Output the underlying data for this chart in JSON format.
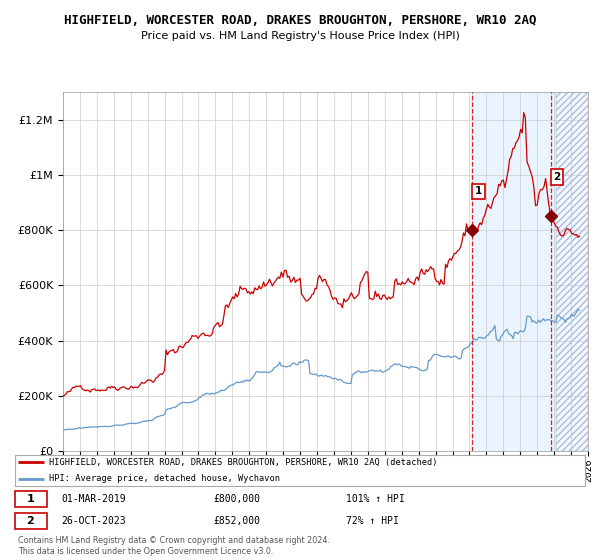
{
  "title": "HIGHFIELD, WORCESTER ROAD, DRAKES BROUGHTON, PERSHORE, WR10 2AQ",
  "subtitle": "Price paid vs. HM Land Registry's House Price Index (HPI)",
  "red_label": "HIGHFIELD, WORCESTER ROAD, DRAKES BROUGHTON, PERSHORE, WR10 2AQ (detached)",
  "blue_label": "HPI: Average price, detached house, Wychavon",
  "footer": "Contains HM Land Registry data © Crown copyright and database right 2024.\nThis data is licensed under the Open Government Licence v3.0.",
  "point1_date": "01-MAR-2019",
  "point1_price": "£800,000",
  "point1_hpi": "101% ↑ HPI",
  "point1_year": 2019.17,
  "point1_value": 800000,
  "point2_date": "26-OCT-2023",
  "point2_price": "£852,000",
  "point2_hpi": "72% ↑ HPI",
  "point2_year": 2023.82,
  "point2_value": 852000,
  "ylim": [
    0,
    1300000
  ],
  "yticks": [
    0,
    200000,
    400000,
    600000,
    800000,
    1000000,
    1200000
  ],
  "ytick_labels": [
    "£0",
    "£200K",
    "£400K",
    "£600K",
    "£800K",
    "£1M",
    "£1.2M"
  ],
  "xlim_start": 1995,
  "xlim_end": 2026,
  "shaded_region_start": 2019.17,
  "hatched_region_start": 2024.1,
  "background_color": "#ffffff",
  "plot_bg_color": "#ffffff",
  "shaded_bg_color": "#ddeeff",
  "grid_color": "#cccccc",
  "red_color": "#cc0000",
  "blue_color": "#6699cc",
  "title_fontsize": 9,
  "subtitle_fontsize": 8
}
